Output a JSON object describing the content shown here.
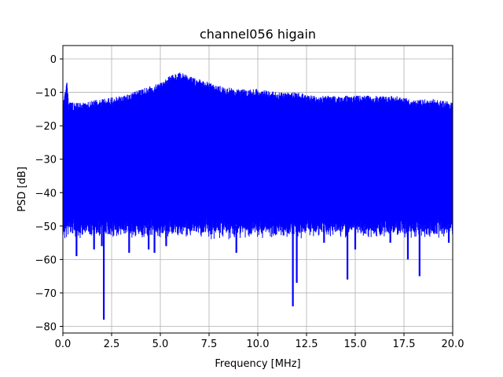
{
  "chart_data": {
    "type": "line",
    "title": "channel056 higain",
    "xlabel": "Frequency [MHz]",
    "ylabel": "PSD [dB]",
    "xlim": [
      0,
      20
    ],
    "ylim": [
      -82,
      4
    ],
    "xticks": [
      0,
      2.5,
      5,
      7.5,
      10,
      12.5,
      15,
      17.5,
      20
    ],
    "xtick_labels": [
      "0.0",
      "2.5",
      "5.0",
      "7.5",
      "10.0",
      "12.5",
      "15.0",
      "17.5",
      "20.0"
    ],
    "yticks": [
      0,
      -10,
      -20,
      -30,
      -40,
      -50,
      -60,
      -70,
      -80
    ],
    "ytick_labels": [
      "0",
      "−10",
      "−20",
      "−30",
      "−40",
      "−50",
      "−60",
      "−70",
      "−80"
    ],
    "grid": true,
    "line_color": "#0000ff",
    "series": [
      {
        "envelope_top": {
          "x": [
            0,
            0.2,
            0.3,
            1.0,
            2.0,
            3.0,
            4.0,
            5.0,
            5.5,
            6.0,
            6.5,
            7.0,
            7.5,
            8.0,
            9.0,
            10.0,
            11.0,
            12.0,
            13.0,
            14.0,
            15.0,
            16.0,
            17.0,
            18.0,
            19.0,
            20.0
          ],
          "y": [
            -13,
            -6,
            -13,
            -13,
            -12,
            -11,
            -9,
            -7,
            -5,
            -4,
            -5,
            -6,
            -7,
            -8,
            -9,
            -9,
            -10,
            -10,
            -11,
            -11,
            -11,
            -11,
            -11,
            -12,
            -12,
            -13
          ]
        },
        "envelope_bottom_typical": -50,
        "dips": [
          {
            "x": 0.7,
            "y": -59
          },
          {
            "x": 1.6,
            "y": -57
          },
          {
            "x": 2.0,
            "y": -56
          },
          {
            "x": 2.1,
            "y": -78
          },
          {
            "x": 3.4,
            "y": -58
          },
          {
            "x": 4.4,
            "y": -57
          },
          {
            "x": 4.7,
            "y": -58
          },
          {
            "x": 5.3,
            "y": -56
          },
          {
            "x": 8.9,
            "y": -58
          },
          {
            "x": 11.8,
            "y": -74
          },
          {
            "x": 12.0,
            "y": -67
          },
          {
            "x": 13.4,
            "y": -55
          },
          {
            "x": 14.6,
            "y": -66
          },
          {
            "x": 15.0,
            "y": -57
          },
          {
            "x": 16.8,
            "y": -55
          },
          {
            "x": 17.7,
            "y": -60
          },
          {
            "x": 18.3,
            "y": -65
          },
          {
            "x": 19.8,
            "y": -55
          }
        ]
      }
    ]
  }
}
